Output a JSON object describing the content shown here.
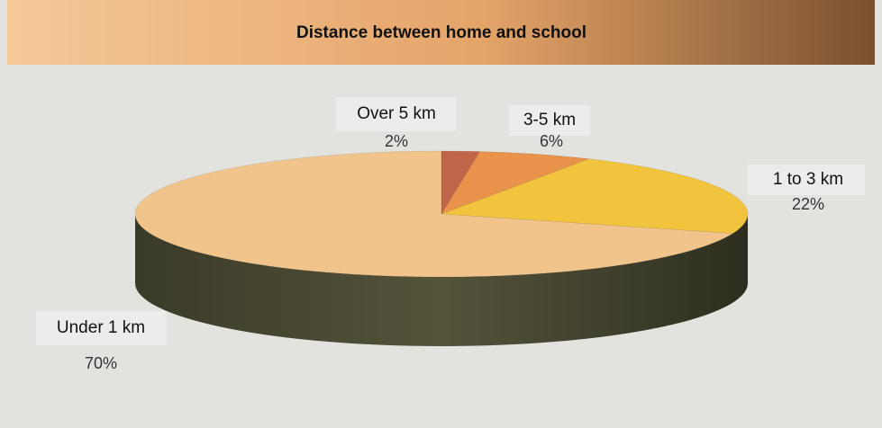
{
  "chart_data": {
    "type": "pie",
    "title": "Distance between home and school",
    "categories": [
      "Over 5 km",
      "3-5 km",
      "1 to 3 km",
      "Under 1 km"
    ],
    "values": [
      2,
      6,
      22,
      70
    ],
    "value_labels": [
      "2%",
      "6%",
      "22%",
      "70%"
    ],
    "colors": [
      "#c0644a",
      "#e8924c",
      "#f2c43e",
      "#f0c48a"
    ]
  }
}
